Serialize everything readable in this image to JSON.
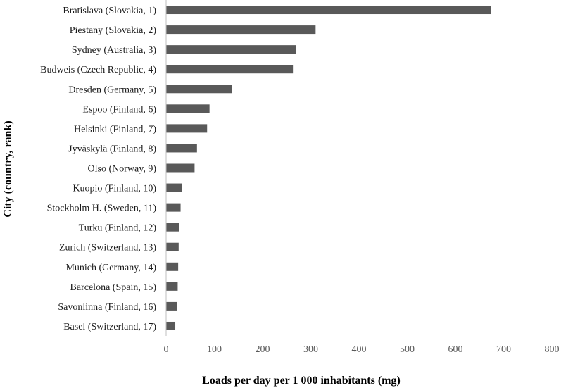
{
  "chart_data": {
    "type": "bar",
    "orientation": "horizontal",
    "categories": [
      "Bratislava (Slovakia, 1)",
      "Piestany (Slovakia, 2)",
      "Sydney (Australia, 3)",
      "Budweis (Czech Republic, 4)",
      "Dresden (Germany, 5)",
      "Espoo (Finland, 6)",
      "Helsinki (Finland, 7)",
      "Jyväskylä (Finland, 8)",
      "Olso (Norway, 9)",
      "Kuopio (Finland, 10)",
      "Stockholm H. (Sweden, 11)",
      "Turku (Finland, 12)",
      "Zurich (Switzerland, 13)",
      "Munich (Germany, 14)",
      "Barcelona (Spain, 15)",
      "Savonlinna (Finland, 16)",
      "Basel (Switzerland, 17)"
    ],
    "values": [
      673,
      310,
      270,
      263,
      137,
      90,
      85,
      64,
      59,
      33,
      30,
      27,
      26,
      25,
      24,
      23,
      19
    ],
    "xlabel": "Loads per day per 1 000 inhabitants  (mg)",
    "ylabel": "City (country, rank)",
    "xlim": [
      0,
      800
    ],
    "xticks": [
      0,
      100,
      200,
      300,
      400,
      500,
      600,
      700,
      800
    ],
    "grid": false,
    "legend": "none",
    "bar_color": "#595959",
    "axis_color": "#bfbfbf"
  }
}
